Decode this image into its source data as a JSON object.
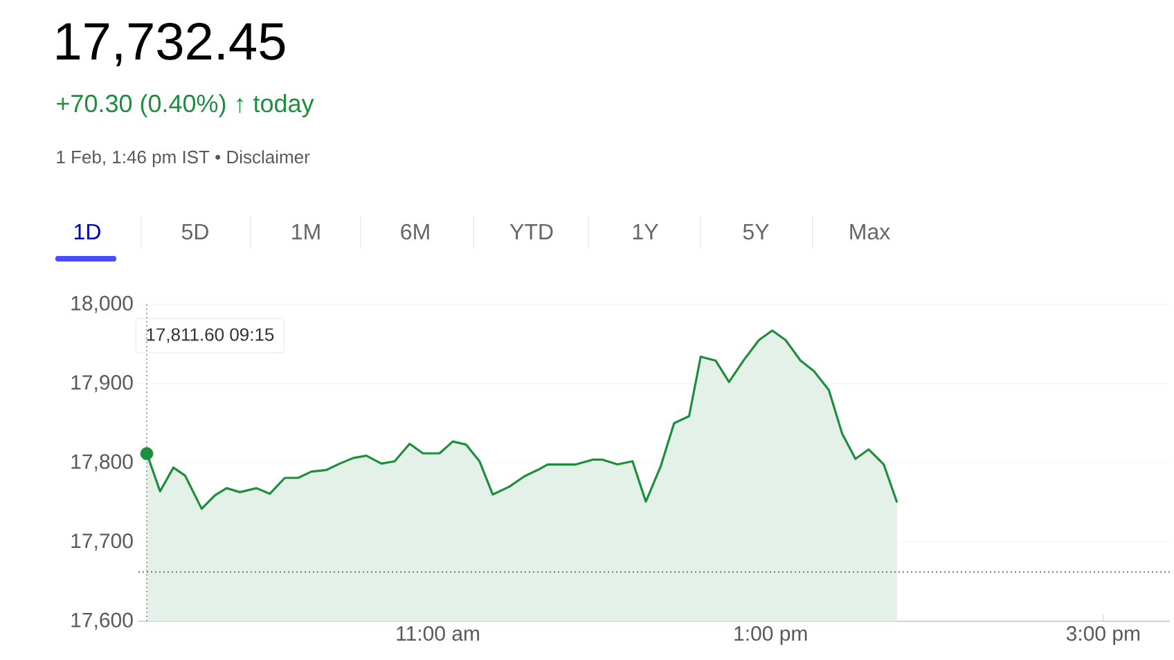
{
  "chart_data": {
    "type": "area",
    "title": "17,732.45",
    "subtitle": "+70.30 (0.40%) ↑ today",
    "annotations": [
      "1 Feb, 1:46 pm IST • Disclaimer",
      "1D",
      "5D",
      "1M",
      "6M",
      "YTD",
      "1Y",
      "5Y",
      "Max",
      "17,811.60  09:15"
    ],
    "x": [
      9.25,
      9.33,
      9.41,
      9.48,
      9.58,
      9.66,
      9.73,
      9.81,
      9.91,
      9.99,
      10.08,
      10.16,
      10.24,
      10.33,
      10.41,
      10.49,
      10.57,
      10.66,
      10.74,
      10.83,
      10.91,
      11.01,
      11.09,
      11.17,
      11.25,
      11.33,
      11.43,
      11.52,
      11.6,
      11.66,
      11.83,
      11.93,
      11.99,
      12.08,
      12.17,
      12.25,
      12.34,
      12.42,
      12.51,
      12.58,
      12.67,
      12.75,
      12.84,
      12.93,
      13.01,
      13.09,
      13.18,
      13.26,
      13.35,
      13.43,
      13.51,
      13.59,
      13.68,
      13.76
    ],
    "series": [
      {
        "color": "#1e8e3e",
        "values": [
          17812,
          17764,
          17794,
          17784,
          17742,
          17759,
          17768,
          17763,
          17768,
          17761,
          17781,
          17781,
          17789,
          17791,
          17799,
          17806,
          17809,
          17799,
          17802,
          17824,
          17812,
          17812,
          17827,
          17823,
          17802,
          17760,
          17770,
          17783,
          17791,
          17798,
          17798,
          17804,
          17804,
          17798,
          17802,
          17751,
          17796,
          17850,
          17859,
          17934,
          17929,
          17902,
          17930,
          17955,
          17967,
          17955,
          17929,
          17916,
          17892,
          17837,
          17805,
          17817,
          17798,
          17750
        ]
      },
      {
        "type": "scatter",
        "color": "#1e8e3e",
        "marker": "circle",
        "x": [
          9.25
        ],
        "values": [
          17811.6
        ]
      }
    ],
    "xlim": [
      9.2,
      15.4
    ],
    "ylim": [
      17600,
      18000
    ],
    "xticks": [
      {
        "value": 11,
        "label": "11:00 am"
      },
      {
        "value": 13,
        "label": "1:00 pm"
      },
      {
        "value": 15,
        "label": "3:00 pm"
      }
    ],
    "yticks": [
      {
        "value": 17600,
        "label": "17,600"
      },
      {
        "value": 17700,
        "label": "17,700"
      },
      {
        "value": 17800,
        "label": "17,800"
      },
      {
        "value": 17900,
        "label": "17,900"
      },
      {
        "value": 18000,
        "label": "18,000"
      }
    ],
    "grid": "y",
    "marker": "none",
    "line_style": "solid",
    "ref_lines": [
      {
        "axis": "y",
        "value": 17662.15,
        "color": "#757575",
        "line_style": "dotted"
      },
      {
        "axis": "x",
        "value": 9.25,
        "color": "#9e9e9e",
        "line_style": "dotted"
      }
    ]
  }
}
